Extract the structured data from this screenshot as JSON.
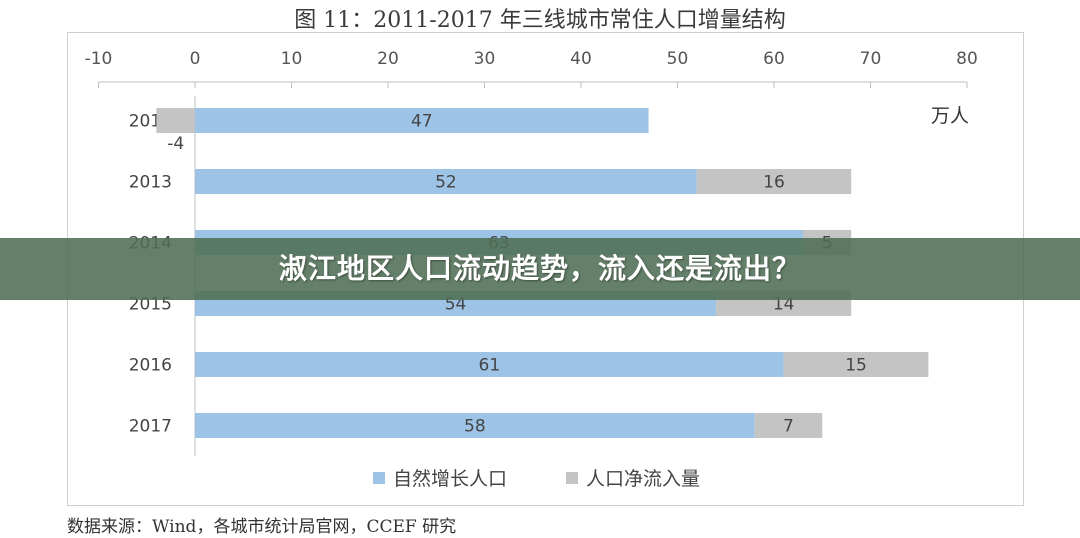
{
  "chart_data": {
    "type": "bar",
    "stacked": true,
    "orientation": "horizontal",
    "title": "图 11：2011-2017 年三线城市常住人口增量结构",
    "unit": "万人",
    "categories": [
      "2012",
      "2013",
      "2014",
      "2015",
      "2016",
      "2017"
    ],
    "series": [
      {
        "name": "自然增长人口",
        "color": "#9dc3e6",
        "values": [
          47,
          52,
          63,
          54,
          61,
          58
        ]
      },
      {
        "name": "人口净流入量",
        "color": "#c4c4c4",
        "values": [
          -4,
          16,
          5,
          14,
          15,
          7
        ]
      }
    ],
    "xlim": [
      -10,
      80
    ],
    "xticks": [
      "-10",
      "0",
      "10",
      "20",
      "30",
      "40",
      "50",
      "60",
      "70",
      "80"
    ],
    "legend_position": "bottom",
    "grid": false
  },
  "source": "数据来源：Wind，各城市统计局官网，CCEF 研究",
  "banner": {
    "text": "淑江地区人口流动趋势，流入还是流出？"
  }
}
